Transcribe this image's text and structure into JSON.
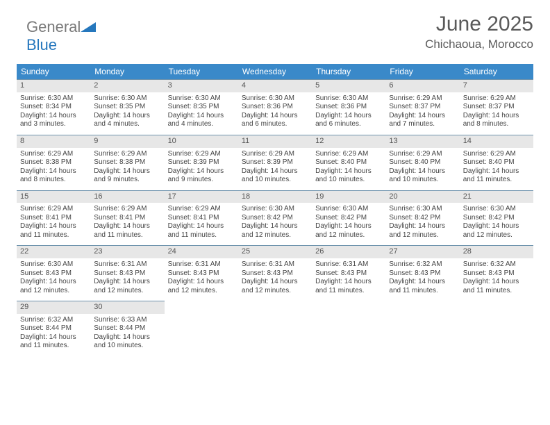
{
  "brand": {
    "word1": "General",
    "word2": "Blue",
    "color1": "#7a7a7a",
    "color2": "#2577bd"
  },
  "title": "June 2025",
  "location": "Chichaoua, Morocco",
  "columns": [
    "Sunday",
    "Monday",
    "Tuesday",
    "Wednesday",
    "Thursday",
    "Friday",
    "Saturday"
  ],
  "header_bg": "#3a89c9",
  "header_fg": "#ffffff",
  "daynum_bg": "#e7e7e7",
  "rule_color": "#6e93ad",
  "days": [
    {
      "n": 1,
      "sr": "6:30 AM",
      "ss": "8:34 PM",
      "dh": 14,
      "dm": 3
    },
    {
      "n": 2,
      "sr": "6:30 AM",
      "ss": "8:35 PM",
      "dh": 14,
      "dm": 4
    },
    {
      "n": 3,
      "sr": "6:30 AM",
      "ss": "8:35 PM",
      "dh": 14,
      "dm": 4
    },
    {
      "n": 4,
      "sr": "6:30 AM",
      "ss": "8:36 PM",
      "dh": 14,
      "dm": 6
    },
    {
      "n": 5,
      "sr": "6:30 AM",
      "ss": "8:36 PM",
      "dh": 14,
      "dm": 6
    },
    {
      "n": 6,
      "sr": "6:29 AM",
      "ss": "8:37 PM",
      "dh": 14,
      "dm": 7
    },
    {
      "n": 7,
      "sr": "6:29 AM",
      "ss": "8:37 PM",
      "dh": 14,
      "dm": 8
    },
    {
      "n": 8,
      "sr": "6:29 AM",
      "ss": "8:38 PM",
      "dh": 14,
      "dm": 8
    },
    {
      "n": 9,
      "sr": "6:29 AM",
      "ss": "8:38 PM",
      "dh": 14,
      "dm": 9
    },
    {
      "n": 10,
      "sr": "6:29 AM",
      "ss": "8:39 PM",
      "dh": 14,
      "dm": 9
    },
    {
      "n": 11,
      "sr": "6:29 AM",
      "ss": "8:39 PM",
      "dh": 14,
      "dm": 10
    },
    {
      "n": 12,
      "sr": "6:29 AM",
      "ss": "8:40 PM",
      "dh": 14,
      "dm": 10
    },
    {
      "n": 13,
      "sr": "6:29 AM",
      "ss": "8:40 PM",
      "dh": 14,
      "dm": 10
    },
    {
      "n": 14,
      "sr": "6:29 AM",
      "ss": "8:40 PM",
      "dh": 14,
      "dm": 11
    },
    {
      "n": 15,
      "sr": "6:29 AM",
      "ss": "8:41 PM",
      "dh": 14,
      "dm": 11
    },
    {
      "n": 16,
      "sr": "6:29 AM",
      "ss": "8:41 PM",
      "dh": 14,
      "dm": 11
    },
    {
      "n": 17,
      "sr": "6:29 AM",
      "ss": "8:41 PM",
      "dh": 14,
      "dm": 11
    },
    {
      "n": 18,
      "sr": "6:30 AM",
      "ss": "8:42 PM",
      "dh": 14,
      "dm": 12
    },
    {
      "n": 19,
      "sr": "6:30 AM",
      "ss": "8:42 PM",
      "dh": 14,
      "dm": 12
    },
    {
      "n": 20,
      "sr": "6:30 AM",
      "ss": "8:42 PM",
      "dh": 14,
      "dm": 12
    },
    {
      "n": 21,
      "sr": "6:30 AM",
      "ss": "8:42 PM",
      "dh": 14,
      "dm": 12
    },
    {
      "n": 22,
      "sr": "6:30 AM",
      "ss": "8:43 PM",
      "dh": 14,
      "dm": 12
    },
    {
      "n": 23,
      "sr": "6:31 AM",
      "ss": "8:43 PM",
      "dh": 14,
      "dm": 12
    },
    {
      "n": 24,
      "sr": "6:31 AM",
      "ss": "8:43 PM",
      "dh": 14,
      "dm": 12
    },
    {
      "n": 25,
      "sr": "6:31 AM",
      "ss": "8:43 PM",
      "dh": 14,
      "dm": 12
    },
    {
      "n": 26,
      "sr": "6:31 AM",
      "ss": "8:43 PM",
      "dh": 14,
      "dm": 11
    },
    {
      "n": 27,
      "sr": "6:32 AM",
      "ss": "8:43 PM",
      "dh": 14,
      "dm": 11
    },
    {
      "n": 28,
      "sr": "6:32 AM",
      "ss": "8:43 PM",
      "dh": 14,
      "dm": 11
    },
    {
      "n": 29,
      "sr": "6:32 AM",
      "ss": "8:44 PM",
      "dh": 14,
      "dm": 11
    },
    {
      "n": 30,
      "sr": "6:33 AM",
      "ss": "8:44 PM",
      "dh": 14,
      "dm": 10
    }
  ],
  "labels": {
    "sunrise": "Sunrise:",
    "sunset": "Sunset:",
    "daylight": "Daylight:",
    "hours_word": "hours",
    "and_word": "and",
    "minutes_word": "minutes."
  }
}
